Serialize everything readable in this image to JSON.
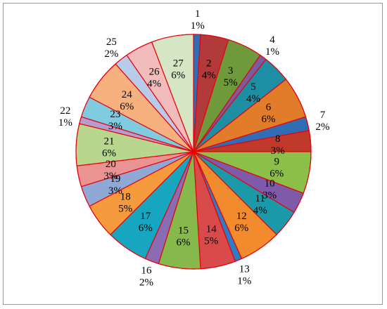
{
  "chart_data": {
    "type": "pie",
    "title": "",
    "slice_border_color": "#e8000b",
    "start": "top, clockwise",
    "slices": [
      {
        "label": "1",
        "value": 1,
        "pct": "1%",
        "color": "#2f6db5"
      },
      {
        "label": "2",
        "value": 4,
        "pct": "4%",
        "color": "#b33a3a"
      },
      {
        "label": "3",
        "value": 5,
        "pct": "5%",
        "color": "#6f9a3c"
      },
      {
        "label": "4",
        "value": 1,
        "pct": "1%",
        "color": "#7b5a9e"
      },
      {
        "label": "5",
        "value": 4,
        "pct": "4%",
        "color": "#1d8ea3"
      },
      {
        "label": "6",
        "value": 6,
        "pct": "6%",
        "color": "#e17c2a"
      },
      {
        "label": "7",
        "value": 2,
        "pct": "2%",
        "color": "#2f6db5"
      },
      {
        "label": "8",
        "value": 3,
        "pct": "3%",
        "color": "#c0392b"
      },
      {
        "label": "9",
        "value": 6,
        "pct": "6%",
        "color": "#8cbf4a"
      },
      {
        "label": "10",
        "value": 3,
        "pct": "3%",
        "color": "#7e5aa8"
      },
      {
        "label": "11",
        "value": 4,
        "pct": "4%",
        "color": "#1a9aa8"
      },
      {
        "label": "12",
        "value": 6,
        "pct": "6%",
        "color": "#f28a2e"
      },
      {
        "label": "13",
        "value": 1,
        "pct": "1%",
        "color": "#2e7cc4"
      },
      {
        "label": "14",
        "value": 5,
        "pct": "5%",
        "color": "#d94a4a"
      },
      {
        "label": "15",
        "value": 6,
        "pct": "6%",
        "color": "#86b84b"
      },
      {
        "label": "16",
        "value": 2,
        "pct": "2%",
        "color": "#8b6bb3"
      },
      {
        "label": "17",
        "value": 6,
        "pct": "6%",
        "color": "#16a6bf"
      },
      {
        "label": "18",
        "value": 5,
        "pct": "5%",
        "color": "#f59a3d"
      },
      {
        "label": "19",
        "value": 3,
        "pct": "3%",
        "color": "#8fa8d6"
      },
      {
        "label": "20",
        "value": 3,
        "pct": "3%",
        "color": "#e99393"
      },
      {
        "label": "21",
        "value": 6,
        "pct": "6%",
        "color": "#b8d68e"
      },
      {
        "label": "22",
        "value": 1,
        "pct": "1%",
        "color": "#b79ccf"
      },
      {
        "label": "23",
        "value": 3,
        "pct": "3%",
        "color": "#7fcbe0"
      },
      {
        "label": "24",
        "value": 6,
        "pct": "6%",
        "color": "#f7b07f"
      },
      {
        "label": "25",
        "value": 2,
        "pct": "2%",
        "color": "#b8cbe8"
      },
      {
        "label": "26",
        "value": 4,
        "pct": "4%",
        "color": "#f2bcbc"
      },
      {
        "label": "27",
        "value": 6,
        "pct": "6%",
        "color": "#d5e6c5"
      }
    ]
  }
}
